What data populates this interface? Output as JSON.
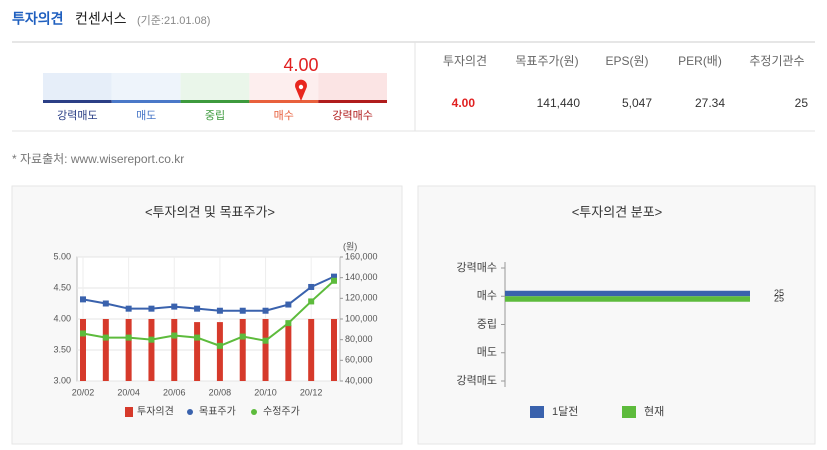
{
  "header": {
    "title": "투자의견",
    "subtitle": "컨센서스",
    "basis": "(기준:21.01.08)"
  },
  "gauge": {
    "value": 4.0,
    "value_label": "4.00",
    "range": [
      1,
      5
    ],
    "labels": [
      "강력매도",
      "매도",
      "중립",
      "매수",
      "강력매수"
    ]
  },
  "table": {
    "headers": [
      "투자의견",
      "목표주가(원)",
      "EPS(원)",
      "PER(배)",
      "추정기관수"
    ],
    "rows": [
      [
        "4.00",
        "141,440",
        "5,047",
        "27.34",
        "25"
      ]
    ]
  },
  "source": "* 자료출처: www.wisereport.co.kr",
  "chart_data": [
    {
      "type": "combo",
      "title": "<투자의견 및 목표주가>",
      "categories": [
        "20/02",
        null,
        "20/04",
        null,
        "20/06",
        null,
        "20/08",
        null,
        "20/10",
        null,
        "20/12",
        null
      ],
      "series": [
        {
          "name": "투자의견",
          "type": "bar",
          "color": "#d63a2b",
          "values": [
            4.0,
            4.0,
            4.0,
            4.0,
            4.0,
            3.95,
            3.95,
            4.0,
            4.0,
            3.9,
            4.0,
            4.0
          ]
        },
        {
          "name": "목표주가",
          "type": "line",
          "axis": "y2",
          "color": "#3a62ad",
          "values": [
            119000,
            115000,
            110000,
            110000,
            112000,
            110000,
            108000,
            108000,
            108000,
            114000,
            131000,
            141000
          ]
        },
        {
          "name": "수정주가",
          "type": "line",
          "axis": "y2",
          "color": "#5dbb3c",
          "values": [
            86000,
            82000,
            82000,
            80000,
            84000,
            82000,
            74000,
            83000,
            79000,
            96000,
            117000,
            137000
          ]
        }
      ],
      "ylim": [
        3,
        5
      ],
      "yticks": [
        {
          "value": 3,
          "label": "3.00"
        },
        {
          "value": 3.5,
          "label": "3.50"
        },
        {
          "value": 4,
          "label": "4.00"
        },
        {
          "value": 4.5,
          "label": "4.50"
        },
        {
          "value": 5,
          "label": "5.00"
        }
      ],
      "y2lim": [
        40000,
        160000
      ],
      "y2ticks": [
        {
          "value": 40000,
          "label": "40,000"
        },
        {
          "value": 60000,
          "label": "60,000"
        },
        {
          "value": 80000,
          "label": "80,000"
        },
        {
          "value": 100000,
          "label": "100,000"
        },
        {
          "value": 120000,
          "label": "120,000"
        },
        {
          "value": 140000,
          "label": "140,000"
        },
        {
          "value": 160000,
          "label": "160,000"
        }
      ],
      "y2_label": "(원)",
      "grid": true
    },
    {
      "type": "barh",
      "title": "<투자의견 분포>",
      "categories": [
        "강력매수",
        "매수",
        "중립",
        "매도",
        "강력매도"
      ],
      "series": [
        {
          "name": "1달전",
          "color": "#3a62ad",
          "values": [
            0,
            25,
            0,
            0,
            0
          ]
        },
        {
          "name": "현재",
          "color": "#5dbb3c",
          "values": [
            0,
            25,
            0,
            0,
            0
          ]
        }
      ],
      "xlim": [
        0,
        25
      ]
    }
  ]
}
